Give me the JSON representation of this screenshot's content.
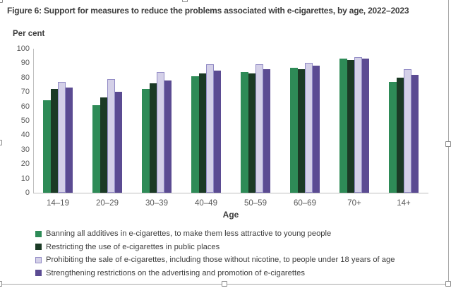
{
  "chart_data": {
    "type": "bar",
    "title": "Figure 6: Support for measures to reduce the problems associated with e-cigarettes, by age, 2022–2023",
    "ylabel": "Per cent",
    "xlabel": "Age",
    "ylim": [
      0,
      100
    ],
    "ytick_step": 10,
    "grid": false,
    "legend_position": "bottom-left",
    "categories": [
      "14–19",
      "20–29",
      "30–39",
      "40–49",
      "50–59",
      "60–69",
      "70+",
      "14+"
    ],
    "series": [
      {
        "name": "Banning all additives in e-cigarettes, to make them less attractive to young people",
        "color": "#2e8b57",
        "values": [
          64,
          61,
          72,
          81,
          84,
          87,
          93,
          77
        ]
      },
      {
        "name": "Restricting the use of e-cigarettes in public places",
        "color": "#1b3a25",
        "values": [
          72,
          66,
          76,
          83,
          83,
          86,
          92,
          80
        ]
      },
      {
        "name": "Prohibiting the sale of e-cigarettes, including those without nicotine, to people under 18 years of age",
        "color": "#d4d0e8",
        "border_color": "#9089c4",
        "values": [
          77,
          79,
          84,
          89,
          89,
          90,
          94,
          86
        ]
      },
      {
        "name": "Strengthening restrictions on the advertising and promotion of e-cigarettes",
        "color": "#5b4b92",
        "values": [
          73,
          70,
          78,
          85,
          86,
          88,
          93,
          82
        ]
      }
    ]
  }
}
